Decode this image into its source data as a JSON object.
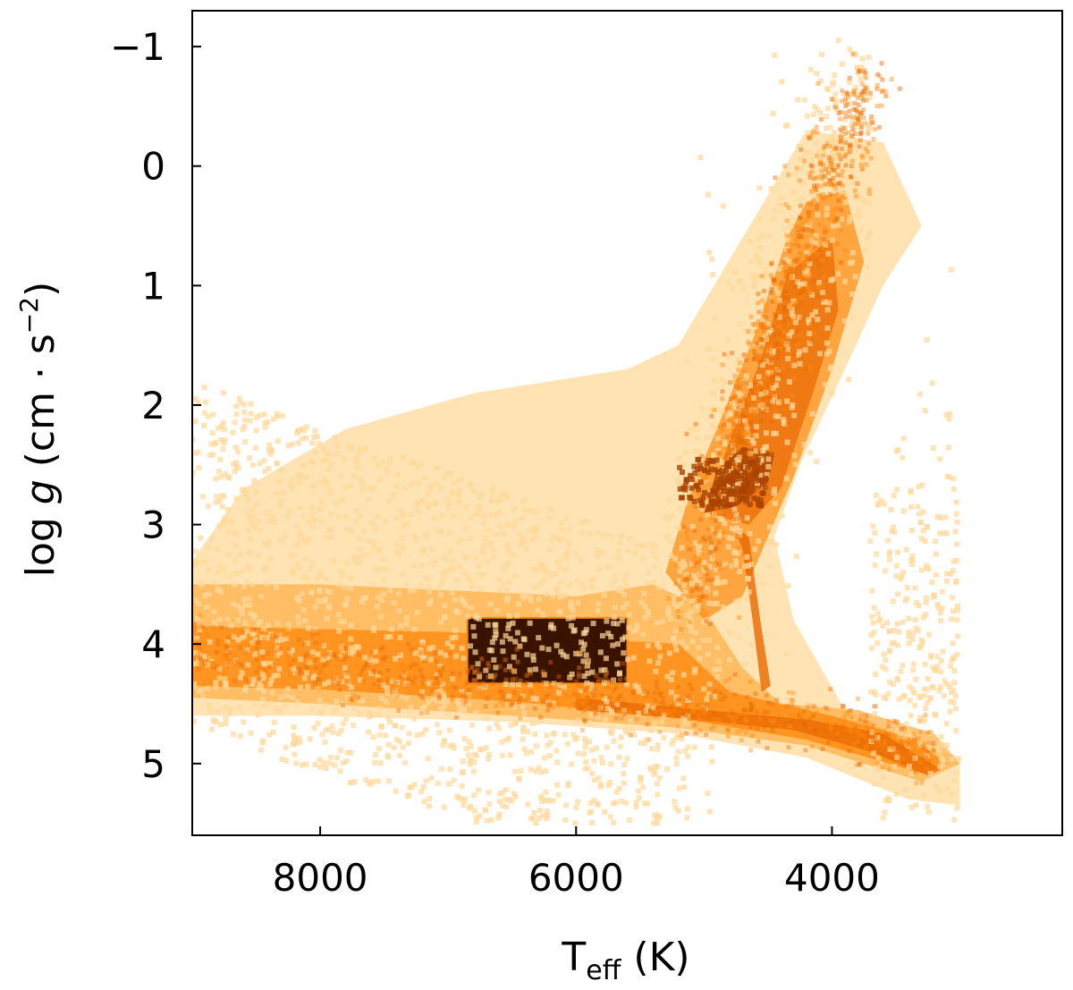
{
  "chart_data": {
    "type": "heatmap",
    "description_note": "",
    "xlabel": {
      "main": "T",
      "sub": "eff",
      "rest": " (K)"
    },
    "ylabel": {
      "pre": "log ",
      "italic": "g",
      "rest": " (cm · s",
      "sup": "−2",
      "close": ")"
    },
    "x_axis": {
      "range": [
        9000,
        2200
      ],
      "inverted": true,
      "ticks": [
        8000,
        6000,
        4000
      ],
      "tick_labels": [
        "8000",
        "6000",
        "4000"
      ]
    },
    "y_axis": {
      "range": [
        -1.3,
        5.6
      ],
      "inverted": true,
      "ticks": [
        -1,
        0,
        1,
        2,
        3,
        4,
        5
      ],
      "tick_labels": [
        "−1",
        "0",
        "1",
        "2",
        "3",
        "4",
        "5"
      ]
    },
    "colormap": [
      "#ffd99a",
      "#ffb04a",
      "#ff8a10",
      "#e86800",
      "#a84200",
      "#3a1200",
      "#000000"
    ],
    "regions": {
      "main_sequence": [
        [
          9000,
          4.05
        ],
        [
          8000,
          4.15
        ],
        [
          7000,
          4.3
        ],
        [
          6000,
          4.4
        ],
        [
          5000,
          4.55
        ],
        [
          4500,
          4.62
        ],
        [
          4000,
          4.68
        ],
        [
          3500,
          4.8
        ],
        [
          3200,
          5.0
        ]
      ],
      "red_giant_branch": [
        [
          5100,
          3.6
        ],
        [
          5000,
          3.2
        ],
        [
          4900,
          2.8
        ],
        [
          4750,
          2.3
        ],
        [
          4500,
          1.6
        ],
        [
          4300,
          1.0
        ],
        [
          4100,
          0.3
        ],
        [
          3900,
          -0.2
        ],
        [
          3700,
          -0.7
        ]
      ],
      "red_clump": [
        [
          4700,
          2.55
        ]
      ],
      "dense_box": {
        "teff": [
          6850,
          5600
        ],
        "logg": [
          3.78,
          4.33
        ]
      },
      "dwarf_branch": [
        [
          4800,
          3.2
        ],
        [
          4600,
          3.9
        ],
        [
          4500,
          4.4
        ]
      ]
    }
  }
}
